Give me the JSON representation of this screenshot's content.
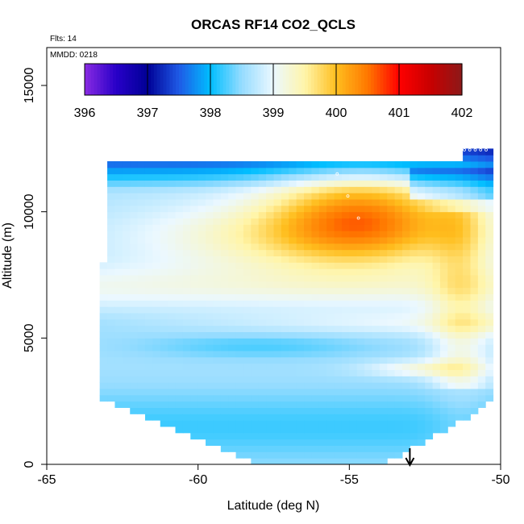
{
  "chart_data": {
    "type": "heatmap",
    "title": "ORCAS RF14 CO2_QCLS",
    "xlabel": "Latitude (deg N)",
    "ylabel": "Altitude (m)",
    "xlim": [
      -65,
      -50
    ],
    "ylim": [
      0,
      16500
    ],
    "x_ticks": [
      -65,
      -60,
      -55,
      -50
    ],
    "y_ticks": [
      0,
      5000,
      10000,
      15000
    ],
    "flights_note": "Flts: 14",
    "date_note": "MMDD: 0218",
    "colorbar": {
      "range": [
        396,
        402
      ],
      "ticks": [
        396,
        397,
        398,
        399,
        400,
        401,
        402
      ]
    },
    "legend_position": "top-inside",
    "grid": false,
    "arrow_marker_lat": -53,
    "colors": {
      "low": "#8b00ff",
      "mid_low": "#1e90ff",
      "neutral": "#ffffe0",
      "mid_high": "#ffc000",
      "high": "#8b1a1a"
    }
  }
}
